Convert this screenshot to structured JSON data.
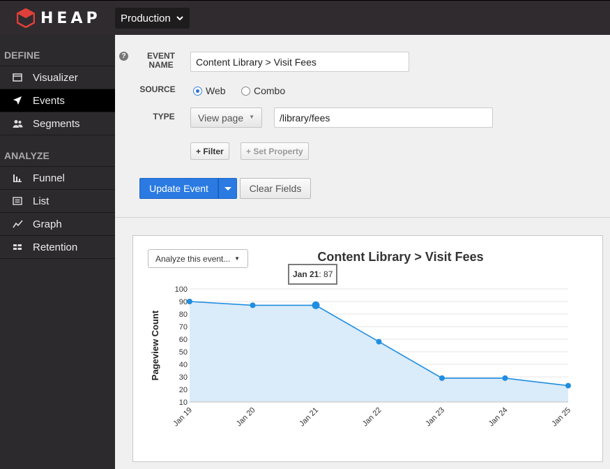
{
  "topbar": {
    "logo_text": "HEAP",
    "environment": "Production",
    "colors": {
      "logo_accent": "#e0403a",
      "bg": "#2f2b2e"
    }
  },
  "sidebar": {
    "define_heading": "DEFINE",
    "define_items": [
      {
        "label": "Visualizer",
        "icon": "window-icon",
        "active": false
      },
      {
        "label": "Events",
        "icon": "paper-plane-icon",
        "active": true
      },
      {
        "label": "Segments",
        "icon": "users-icon",
        "active": false
      }
    ],
    "analyze_heading": "ANALYZE",
    "analyze_items": [
      {
        "label": "Funnel",
        "icon": "bar-chart-icon"
      },
      {
        "label": "List",
        "icon": "list-icon"
      },
      {
        "label": "Graph",
        "icon": "line-graph-icon"
      },
      {
        "label": "Retention",
        "icon": "grid-icon"
      }
    ]
  },
  "form": {
    "help_icon": "?",
    "event_name_label_1": "EVENT",
    "event_name_label_2": "NAME",
    "event_name_value": "Content Library > Visit Fees",
    "source_label": "SOURCE",
    "source_options": [
      "Web",
      "Combo"
    ],
    "source_selected": "Web",
    "type_label": "TYPE",
    "type_value": "View page",
    "path_value": "/library/fees",
    "filter_button": "+ Filter",
    "set_property_button": "+ Set Property",
    "update_button": "Update Event",
    "clear_button": "Clear Fields"
  },
  "chart_panel": {
    "analyze_button": "Analyze this event...",
    "tooltip_date": "Jan 21",
    "tooltip_value": ": 87"
  },
  "chart_data": {
    "type": "area",
    "title": "Content Library > Visit Fees",
    "xlabel": "",
    "ylabel": "Pageview Count",
    "categories": [
      "Jan 19",
      "Jan 20",
      "Jan 21",
      "Jan 22",
      "Jan 23",
      "Jan 24",
      "Jan 25"
    ],
    "series": [
      {
        "values": [
          90,
          87,
          87,
          58,
          29,
          29,
          23
        ]
      }
    ],
    "ylim": [
      10,
      100
    ],
    "yticks": [
      10,
      20,
      30,
      40,
      50,
      60,
      70,
      80,
      90,
      100
    ],
    "grid": true,
    "highlighted_index": 2,
    "colors": {
      "line": "#1f8de0",
      "fill": "#daebf9"
    }
  }
}
